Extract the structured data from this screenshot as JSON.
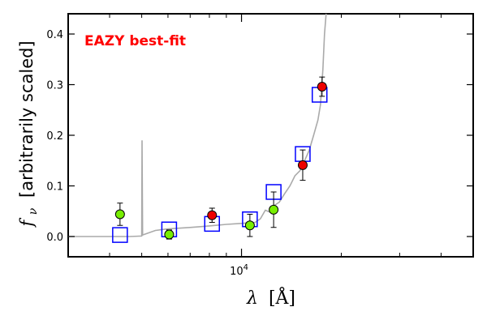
{
  "chart_data": {
    "type": "scatter",
    "annotation": {
      "text": "EAZY best-fit",
      "color": "#ff0000"
    },
    "xlabel_symbol": "λ",
    "xlabel_unit": "[Å]",
    "ylabel_symbol": "f",
    "ylabel_sub": "ν",
    "ylabel_text": "[arbitrarily scaled]",
    "x_scale": "log",
    "xlim": [
      3000,
      50000
    ],
    "ylim": [
      -0.04,
      0.44
    ],
    "x_tick_labels": [
      {
        "value": 10000,
        "base": "10",
        "exp": "4"
      }
    ],
    "x_minor_ticks": [
      4000,
      5000,
      6000,
      7000,
      8000,
      9000,
      20000,
      30000,
      40000
    ],
    "y_ticks": [
      0.0,
      0.1,
      0.2,
      0.3,
      0.4
    ],
    "y_tick_labels": [
      "0.0",
      "0.1",
      "0.2",
      "0.3",
      "0.4"
    ],
    "grid": false,
    "legend": "none",
    "colors": {
      "template": "#aaaaaa",
      "model_box": "#0000ff",
      "green_points": "#77ee00",
      "red_points": "#ee0000",
      "errorbar": "#000000"
    },
    "series": [
      {
        "kind": "model-boxes",
        "points": [
          {
            "x": 4300,
            "y": 0.003
          },
          {
            "x": 6050,
            "y": 0.014
          },
          {
            "x": 8150,
            "y": 0.025
          },
          {
            "x": 10600,
            "y": 0.034
          },
          {
            "x": 12500,
            "y": 0.088
          },
          {
            "x": 15300,
            "y": 0.163
          },
          {
            "x": 17200,
            "y": 0.28
          }
        ]
      },
      {
        "kind": "green-points",
        "points": [
          {
            "x": 4300,
            "y": 0.044,
            "err": 0.022
          },
          {
            "x": 6050,
            "y": 0.004,
            "err": 0.009
          },
          {
            "x": 10600,
            "y": 0.022,
            "err": 0.022
          },
          {
            "x": 12500,
            "y": 0.053,
            "err": 0.035
          }
        ]
      },
      {
        "kind": "red-points",
        "points": [
          {
            "x": 8150,
            "y": 0.042,
            "err": 0.014
          },
          {
            "x": 15300,
            "y": 0.141,
            "err": 0.03
          },
          {
            "x": 17500,
            "y": 0.296,
            "err": 0.019
          }
        ]
      }
    ],
    "template_curve": [
      [
        3000,
        0.0
      ],
      [
        4600,
        0.0
      ],
      [
        5000,
        0.001
      ],
      [
        5010,
        0.19
      ],
      [
        5030,
        0.003
      ],
      [
        5500,
        0.012
      ],
      [
        6000,
        0.015
      ],
      [
        7000,
        0.018
      ],
      [
        8000,
        0.021
      ],
      [
        9000,
        0.024
      ],
      [
        10000,
        0.026
      ],
      [
        11000,
        0.028
      ],
      [
        11400,
        0.035
      ],
      [
        11800,
        0.052
      ],
      [
        12200,
        0.048
      ],
      [
        12600,
        0.062
      ],
      [
        13000,
        0.068
      ],
      [
        13500,
        0.085
      ],
      [
        14000,
        0.1
      ],
      [
        14500,
        0.12
      ],
      [
        15000,
        0.13
      ],
      [
        15500,
        0.15
      ],
      [
        16000,
        0.17
      ],
      [
        16500,
        0.2
      ],
      [
        17000,
        0.23
      ],
      [
        17300,
        0.26
      ],
      [
        17600,
        0.33
      ],
      [
        17800,
        0.4
      ],
      [
        18000,
        0.44
      ]
    ]
  }
}
